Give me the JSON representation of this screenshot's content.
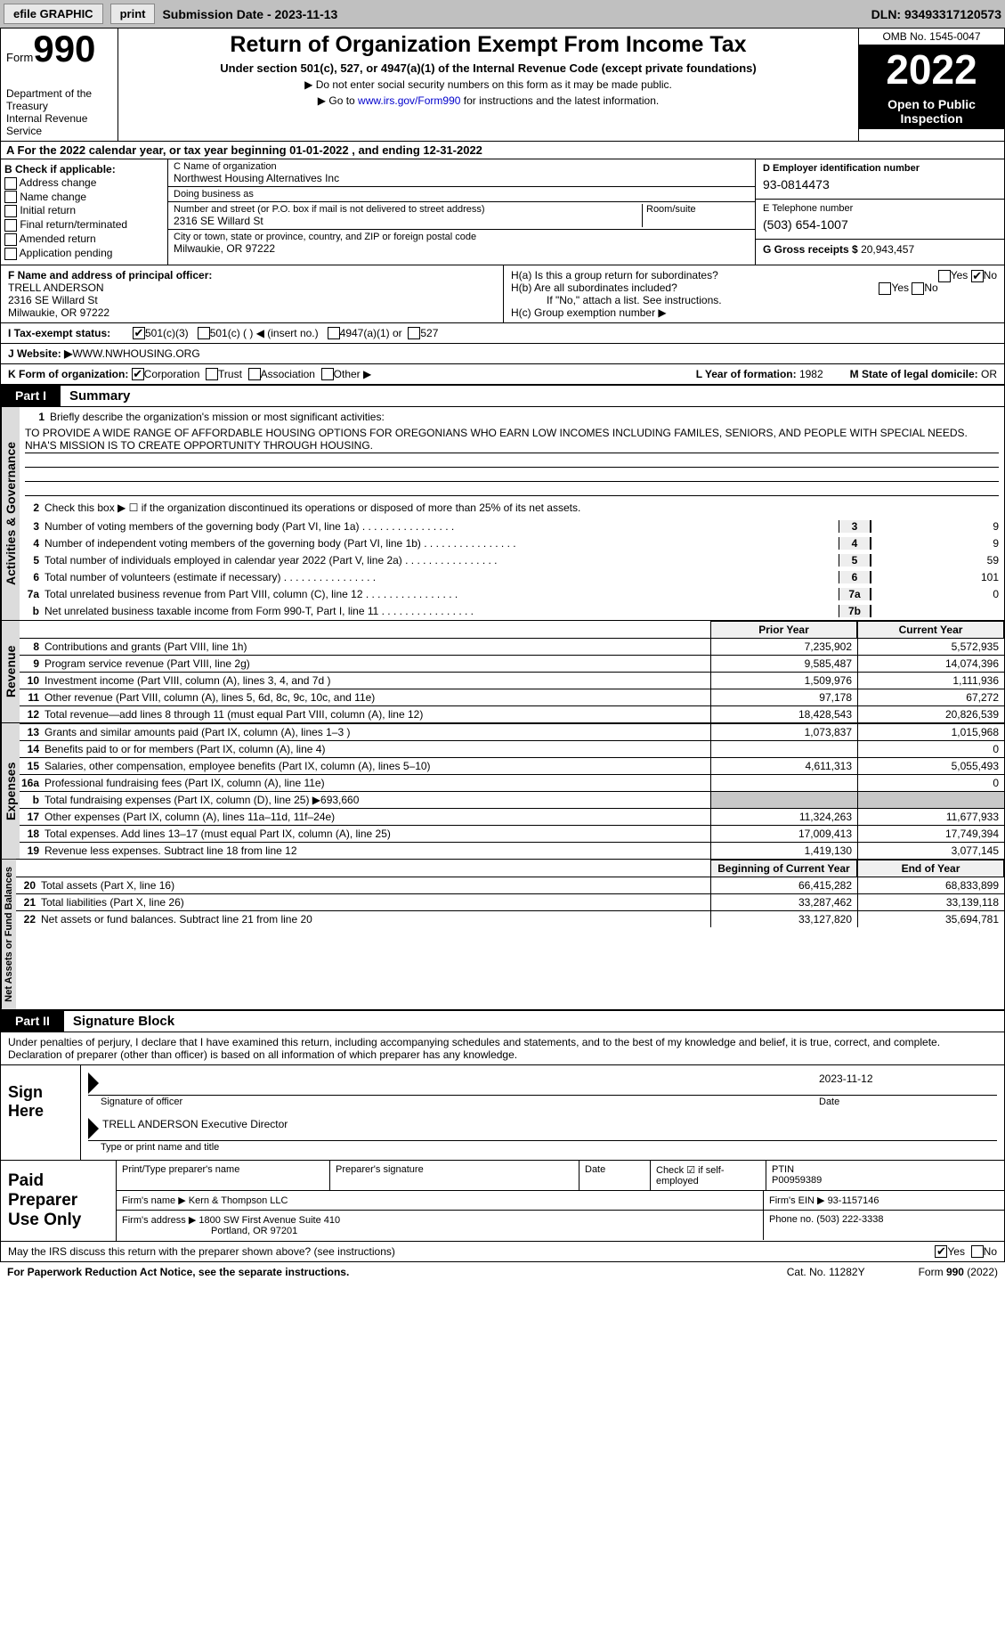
{
  "topbar": {
    "efile": "efile GRAPHIC",
    "print": "print",
    "subdate_label": "Submission Date - ",
    "subdate": "2023-11-13",
    "dln_label": "DLN: ",
    "dln": "93493317120573"
  },
  "header": {
    "form_word": "Form",
    "form_no": "990",
    "title": "Return of Organization Exempt From Income Tax",
    "subtitle": "Under section 501(c), 527, or 4947(a)(1) of the Internal Revenue Code (except private foundations)",
    "note1": "▶ Do not enter social security numbers on this form as it may be made public.",
    "note2a": "▶ Go to ",
    "note2_link": "www.irs.gov/Form990",
    "note2b": " for instructions and the latest information.",
    "dept": "Department of the Treasury\nInternal Revenue Service",
    "omb": "OMB No. 1545-0047",
    "year": "2022",
    "open": "Open to Public Inspection"
  },
  "cal": "A For the 2022 calendar year, or tax year beginning 01-01-2022   , and ending 12-31-2022",
  "b": {
    "label": "B Check if applicable:",
    "opts": [
      "Address change",
      "Name change",
      "Initial return",
      "Final return/terminated",
      "Amended return",
      "Application pending"
    ]
  },
  "c": {
    "name_label": "C Name of organization",
    "name": "Northwest Housing Alternatives Inc",
    "dba_label": "Doing business as",
    "dba": "",
    "street_label": "Number and street (or P.O. box if mail is not delivered to street address)",
    "street": "2316 SE Willard St",
    "room_label": "Room/suite",
    "city_label": "City or town, state or province, country, and ZIP or foreign postal code",
    "city": "Milwaukie, OR  97222"
  },
  "d": {
    "ein_label": "D Employer identification number",
    "ein": "93-0814473",
    "phone_label": "E Telephone number",
    "phone": "(503) 654-1007",
    "gross_label": "G Gross receipts $ ",
    "gross": "20,943,457"
  },
  "f": {
    "label": "F  Name and address of principal officer:",
    "name": "TRELL ANDERSON",
    "street": "2316 SE Willard St",
    "city": "Milwaukie, OR  97222"
  },
  "h": {
    "a": "H(a)  Is this a group return for subordinates?",
    "b": "H(b)  Are all subordinates included?",
    "b_note": "If \"No,\" attach a list. See instructions.",
    "c": "H(c)  Group exemption number ▶",
    "yes": "Yes",
    "no": "No"
  },
  "i": {
    "label": "I   Tax-exempt status:",
    "o1": "501(c)(3)",
    "o2": "501(c) (   ) ◀ (insert no.)",
    "o3": "4947(a)(1) or",
    "o4": "527"
  },
  "j": {
    "label": "J   Website: ▶  ",
    "val": "WWW.NWHOUSING.ORG"
  },
  "k": {
    "label": "K Form of organization:",
    "o1": "Corporation",
    "o2": "Trust",
    "o3": "Association",
    "o4": "Other ▶",
    "l": "L Year of formation: ",
    "l_val": "1982",
    "m": "M State of legal domicile: ",
    "m_val": "OR"
  },
  "part1": {
    "no": "Part I",
    "title": "Summary"
  },
  "p1": {
    "tab": "Activities & Governance",
    "l1": "Briefly describe the organization's mission or most significant activities:",
    "mission": "TO PROVIDE A WIDE RANGE OF AFFORDABLE HOUSING OPTIONS FOR OREGONIANS WHO EARN LOW INCOMES INCLUDING FAMILES, SENIORS, AND PEOPLE WITH SPECIAL NEEDS. NHA'S MISSION IS TO CREATE OPPORTUNITY THROUGH HOUSING.",
    "l2": "Check this box ▶ ☐  if the organization discontinued its operations or disposed of more than 25% of its net assets.",
    "l3": "Number of voting members of the governing body (Part VI, line 1a)",
    "l4": "Number of independent voting members of the governing body (Part VI, line 1b)",
    "l5": "Total number of individuals employed in calendar year 2022 (Part V, line 2a)",
    "l6": "Total number of volunteers (estimate if necessary)",
    "l7a": "Total unrelated business revenue from Part VIII, column (C), line 12",
    "l7b": "Net unrelated business taxable income from Form 990-T, Part I, line 11",
    "v3": "9",
    "v4": "9",
    "v5": "59",
    "v6": "101",
    "v7a": "0",
    "v7b": ""
  },
  "revexp": {
    "rev_tab": "Revenue",
    "exp_tab": "Expenses",
    "net_tab": "Net Assets or Fund Balances",
    "hdr_prior": "Prior Year",
    "hdr_curr": "Current Year",
    "hdr_beg": "Beginning of Current Year",
    "hdr_end": "End of Year",
    "rows": [
      {
        "n": "8",
        "d": "Contributions and grants (Part VIII, line 1h)",
        "p": "7,235,902",
        "c": "5,572,935"
      },
      {
        "n": "9",
        "d": "Program service revenue (Part VIII, line 2g)",
        "p": "9,585,487",
        "c": "14,074,396"
      },
      {
        "n": "10",
        "d": "Investment income (Part VIII, column (A), lines 3, 4, and 7d )",
        "p": "1,509,976",
        "c": "1,111,936"
      },
      {
        "n": "11",
        "d": "Other revenue (Part VIII, column (A), lines 5, 6d, 8c, 9c, 10c, and 11e)",
        "p": "97,178",
        "c": "67,272"
      },
      {
        "n": "12",
        "d": "Total revenue—add lines 8 through 11 (must equal Part VIII, column (A), line 12)",
        "p": "18,428,543",
        "c": "20,826,539"
      }
    ],
    "erows": [
      {
        "n": "13",
        "d": "Grants and similar amounts paid (Part IX, column (A), lines 1–3 )",
        "p": "1,073,837",
        "c": "1,015,968"
      },
      {
        "n": "14",
        "d": "Benefits paid to or for members (Part IX, column (A), line 4)",
        "p": "",
        "c": "0"
      },
      {
        "n": "15",
        "d": "Salaries, other compensation, employee benefits (Part IX, column (A), lines 5–10)",
        "p": "4,611,313",
        "c": "5,055,493"
      },
      {
        "n": "16a",
        "d": "Professional fundraising fees (Part IX, column (A), line 11e)",
        "p": "",
        "c": "0"
      },
      {
        "n": "b",
        "d": "Total fundraising expenses (Part IX, column (D), line 25) ▶693,660",
        "p": "GREY",
        "c": "GREY"
      },
      {
        "n": "17",
        "d": "Other expenses (Part IX, column (A), lines 11a–11d, 11f–24e)",
        "p": "11,324,263",
        "c": "11,677,933"
      },
      {
        "n": "18",
        "d": "Total expenses. Add lines 13–17 (must equal Part IX, column (A), line 25)",
        "p": "17,009,413",
        "c": "17,749,394"
      },
      {
        "n": "19",
        "d": "Revenue less expenses. Subtract line 18 from line 12",
        "p": "1,419,130",
        "c": "3,077,145"
      }
    ],
    "nrows": [
      {
        "n": "20",
        "d": "Total assets (Part X, line 16)",
        "p": "66,415,282",
        "c": "68,833,899"
      },
      {
        "n": "21",
        "d": "Total liabilities (Part X, line 26)",
        "p": "33,287,462",
        "c": "33,139,118"
      },
      {
        "n": "22",
        "d": "Net assets or fund balances. Subtract line 21 from line 20",
        "p": "33,127,820",
        "c": "35,694,781"
      }
    ]
  },
  "part2": {
    "no": "Part II",
    "title": "Signature Block"
  },
  "sig": {
    "decl": "Under penalties of perjury, I declare that I have examined this return, including accompanying schedules and statements, and to the best of my knowledge and belief, it is true, correct, and complete. Declaration of preparer (other than officer) is based on all information of which preparer has any knowledge.",
    "sign_here": "Sign Here",
    "sig_officer": "Signature of officer",
    "date": "Date",
    "sig_date": "2023-11-12",
    "name_title": "TRELL ANDERSON  Executive Director",
    "type_name": "Type or print name and title"
  },
  "paid": {
    "label": "Paid Preparer Use Only",
    "h1": "Print/Type preparer's name",
    "h2": "Preparer's signature",
    "h3": "Date",
    "h4": "Check ☑ if self-employed",
    "h5_label": "PTIN",
    "h5": "P00959389",
    "firm_label": "Firm's name    ▶ ",
    "firm": "Kern & Thompson LLC",
    "ein_label": "Firm's EIN ▶ ",
    "ein": "93-1157146",
    "addr_label": "Firm's address ▶ ",
    "addr1": "1800 SW First Avenue Suite 410",
    "addr2": "Portland, OR  97201",
    "phone_label": "Phone no. ",
    "phone": "(503) 222-3338"
  },
  "may": {
    "text": "May the IRS discuss this return with the preparer shown above? (see instructions)",
    "yes": "Yes",
    "no": "No"
  },
  "footer": {
    "l": "For Paperwork Reduction Act Notice, see the separate instructions.",
    "m": "Cat. No. 11282Y",
    "r": "Form 990 (2022)"
  }
}
